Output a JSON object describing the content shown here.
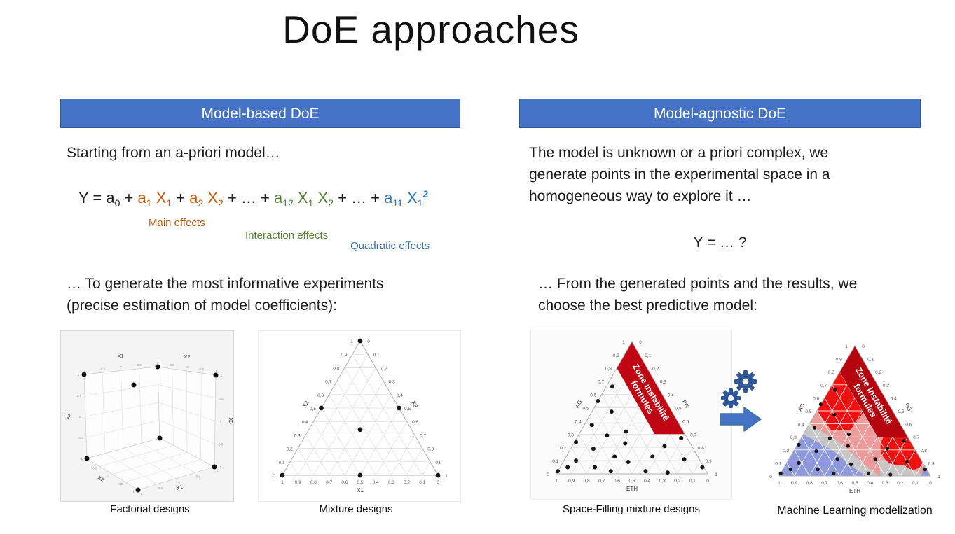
{
  "slide": {
    "title": "DoE approaches"
  },
  "colors": {
    "accent_blue": "#4472C4",
    "bar_border": "#2F5597",
    "orange": "#C55A11",
    "green": "#548235",
    "formula_blue": "#2E74B5",
    "band_red": "#C00613",
    "gear_blue": "#2E5597",
    "arrow_border": "#41719C"
  },
  "left": {
    "header": "Model-based DoE",
    "intro": "Starting from an a-priori model…",
    "formula_segments": [
      {
        "t": "Y = a",
        "c": "#1b1b1b"
      },
      {
        "t": "0",
        "c": "#1b1b1b",
        "sub": true
      },
      {
        "t": " + ",
        "c": "#1b1b1b"
      },
      {
        "t": "a",
        "c": "#C55A11"
      },
      {
        "t": "1",
        "c": "#C55A11",
        "sub": true
      },
      {
        "t": " X",
        "c": "#C55A11"
      },
      {
        "t": "1",
        "c": "#C55A11",
        "sub": true
      },
      {
        "t": " + ",
        "c": "#1b1b1b"
      },
      {
        "t": "a",
        "c": "#C55A11"
      },
      {
        "t": "2",
        "c": "#C55A11",
        "sub": true
      },
      {
        "t": " X",
        "c": "#C55A11"
      },
      {
        "t": "2",
        "c": "#C55A11",
        "sub": true
      },
      {
        "t": " + … + ",
        "c": "#1b1b1b"
      },
      {
        "t": "a",
        "c": "#548235"
      },
      {
        "t": "12",
        "c": "#548235",
        "sub": true
      },
      {
        "t": " X",
        "c": "#548235"
      },
      {
        "t": "1",
        "c": "#548235",
        "sub": true
      },
      {
        "t": " X",
        "c": "#548235"
      },
      {
        "t": "2",
        "c": "#548235",
        "sub": true
      },
      {
        "t": " + … + ",
        "c": "#1b1b1b"
      },
      {
        "t": "a",
        "c": "#2E74B5"
      },
      {
        "t": "11",
        "c": "#2E74B5",
        "sub": true
      },
      {
        "t": " X",
        "c": "#2E74B5"
      },
      {
        "t": "1",
        "c": "#2E74B5",
        "sub": true
      },
      {
        "t": "2",
        "c": "#2E74B5",
        "sup": true
      }
    ],
    "effect_labels": [
      {
        "text": "Main effects",
        "color": "#C55A11"
      },
      {
        "text": "Interaction effects",
        "color": "#548235"
      },
      {
        "text": "Quadratic effects",
        "color": "#2E74B5"
      }
    ],
    "body_lines": [
      "… To generate the most informative experiments",
      "(precise estimation of model coefficients):"
    ]
  },
  "right": {
    "header": "Model-agnostic DoE",
    "intro_lines": [
      "The model is unknown or a priori complex, we",
      "generate points in the experimental space in a",
      "homogeneous way to explore it …"
    ],
    "formula": "Y = … ?",
    "body_lines": [
      "… From the generated points and the results, we",
      "choose the best predictive model:"
    ]
  },
  "chart_data": [
    {
      "id": "factorial",
      "type": "scatter",
      "title": "Factorial designs",
      "axes": {
        "x1": "X1",
        "x2": "X2",
        "x3": "X3"
      },
      "tick_labels": [
        "-1",
        "-0,5",
        "0",
        "0,5",
        "1"
      ],
      "axis_range": [
        -1,
        1
      ],
      "points": [
        [
          -1,
          -1,
          -1
        ],
        [
          1,
          -1,
          -1
        ],
        [
          -1,
          1,
          -1
        ],
        [
          1,
          1,
          -1
        ],
        [
          -1,
          -1,
          1
        ],
        [
          1,
          -1,
          1
        ],
        [
          -1,
          1,
          1
        ],
        [
          1,
          1,
          1
        ]
      ]
    },
    {
      "id": "mixture",
      "type": "scatter",
      "title": "Mixture designs",
      "axes": {
        "bottom": "X1",
        "left": "X2",
        "right": "X3"
      },
      "tick_labels": [
        "0",
        "0,1",
        "0,2",
        "0,3",
        "0,4",
        "0,5",
        "0,6",
        "0,7",
        "0,8",
        "0,9",
        "1"
      ],
      "points": [
        [
          1,
          0,
          0
        ],
        [
          0,
          1,
          0
        ],
        [
          0,
          0,
          1
        ],
        [
          0.5,
          0.5,
          0
        ],
        [
          0.5,
          0,
          0.5
        ],
        [
          0,
          0.5,
          0.5
        ],
        [
          0.33,
          0.34,
          0.33
        ]
      ]
    },
    {
      "id": "space_filling",
      "type": "scatter",
      "title": "Space-Filling mixture designs",
      "axes": {
        "bottom": "ETH",
        "left": "AG",
        "right": "PG"
      },
      "tick_labels": [
        "0",
        "0,1",
        "0,2",
        "0,3",
        "0,4",
        "0,5",
        "0,6",
        "0,7",
        "0,8",
        "0,9",
        "1"
      ],
      "band": {
        "label_lines": [
          "Zone instabilité",
          "formules"
        ],
        "polygon": [
          [
            0.2,
            0.8,
            0
          ],
          [
            0,
            1,
            0
          ],
          [
            0,
            0.3,
            0.7
          ],
          [
            0.2,
            0.3,
            0.5
          ]
        ],
        "color": "#C00613"
      },
      "points": [
        [
          0.3,
          0.66,
          0.04
        ],
        [
          0.45,
          0.55,
          0.0
        ],
        [
          0.4,
          0.47,
          0.13
        ],
        [
          0.58,
          0.37,
          0.05
        ],
        [
          0.75,
          0.24,
          0.01
        ],
        [
          0.52,
          0.29,
          0.19
        ],
        [
          0.43,
          0.23,
          0.34
        ],
        [
          0.66,
          0.19,
          0.15
        ],
        [
          0.82,
          0.1,
          0.08
        ],
        [
          0.98,
          0.02,
          0.0
        ],
        [
          0.72,
          0.05,
          0.23
        ],
        [
          0.63,
          0.02,
          0.35
        ],
        [
          0.48,
          0.09,
          0.43
        ],
        [
          0.4,
          0.02,
          0.58
        ],
        [
          0.26,
          0.01,
          0.73
        ],
        [
          0.18,
          0.21,
          0.61
        ],
        [
          0.04,
          0.27,
          0.69
        ],
        [
          0.1,
          0.11,
          0.79
        ],
        [
          0.01,
          0.05,
          0.94
        ],
        [
          0.38,
          0.32,
          0.3
        ],
        [
          0.3,
          0.13,
          0.57
        ],
        [
          0.9,
          0.05,
          0.05
        ],
        [
          0.55,
          0.13,
          0.32
        ]
      ]
    },
    {
      "id": "ml",
      "type": "scatter",
      "title": "Machine Learning modelization",
      "axes": {
        "bottom": "ETH",
        "left": "AG",
        "right": "PG"
      },
      "tick_labels": [
        "0",
        "0,1",
        "0,2",
        "0,3",
        "0,4",
        "0,5",
        "0,6",
        "0,7",
        "0,8",
        "0,9",
        "1"
      ],
      "grid_color": "#ffffff",
      "band": {
        "label_lines": [
          "Zone instabilité",
          "formules"
        ],
        "polygon": [
          [
            0.2,
            0.8,
            0
          ],
          [
            0,
            1,
            0
          ],
          [
            0,
            0.3,
            0.7
          ],
          [
            0.2,
            0.3,
            0.5
          ]
        ],
        "color": "#B50610"
      },
      "regions": [
        {
          "poly": [
            [
              1,
              0,
              0
            ],
            [
              0,
              1,
              0
            ],
            [
              0,
              0,
              1
            ]
          ],
          "color": "#EC9B9B"
        },
        {
          "poly": [
            [
              1,
              0,
              0
            ],
            [
              0.6,
              0.4,
              0
            ],
            [
              0.47,
              0.26,
              0.27
            ],
            [
              0.4,
              0.1,
              0.5
            ],
            [
              0.34,
              0,
              0.66
            ]
          ],
          "color": "#C6C6C6"
        },
        {
          "poly": [
            [
              1,
              0,
              0
            ],
            [
              0.68,
              0.32,
              0
            ],
            [
              0.55,
              0.2,
              0.25
            ],
            [
              0.48,
              0.07,
              0.45
            ],
            [
              0.43,
              0,
              0.57
            ]
          ],
          "color": "#8E99DC"
        },
        {
          "poly": [
            [
              0.33,
              0,
              0.67
            ],
            [
              0.28,
              0.12,
              0.6
            ],
            [
              0.18,
              0.15,
              0.67
            ],
            [
              0.06,
              0.02,
              0.92
            ],
            [
              0.02,
              0,
              0.98
            ]
          ],
          "color": "#C6C6C6"
        },
        {
          "poly": [
            [
              0.06,
              0,
              0.94
            ],
            [
              0,
              0,
              1
            ],
            [
              0,
              0.08,
              0.92
            ]
          ],
          "color": "#8E99DC"
        },
        {
          "circle": [
            0.1,
            0.22,
            0.68
          ],
          "r": 26,
          "color": "#EE1111"
        },
        {
          "circle": [
            0.05,
            0.13,
            0.82
          ],
          "r": 15,
          "color": "#EE1111"
        },
        {
          "poly": [
            [
              0.5,
              0.5,
              0
            ],
            [
              0.3,
              0.7,
              0
            ],
            [
              0,
              1,
              0
            ],
            [
              0.05,
              0.6,
              0.35
            ],
            [
              0.22,
              0.47,
              0.31
            ],
            [
              0.35,
              0.35,
              0.3
            ],
            [
              0.48,
              0.35,
              0.17
            ]
          ],
          "color": "#EE1111"
        }
      ],
      "points": [
        [
          0.3,
          0.66,
          0.04
        ],
        [
          0.45,
          0.55,
          0.0
        ],
        [
          0.4,
          0.47,
          0.13
        ],
        [
          0.58,
          0.37,
          0.05
        ],
        [
          0.75,
          0.24,
          0.01
        ],
        [
          0.52,
          0.29,
          0.19
        ],
        [
          0.43,
          0.23,
          0.34
        ],
        [
          0.66,
          0.19,
          0.15
        ],
        [
          0.82,
          0.1,
          0.08
        ],
        [
          0.98,
          0.02,
          0.0
        ],
        [
          0.72,
          0.05,
          0.23
        ],
        [
          0.63,
          0.02,
          0.35
        ],
        [
          0.48,
          0.09,
          0.43
        ],
        [
          0.4,
          0.02,
          0.58
        ],
        [
          0.26,
          0.01,
          0.73
        ],
        [
          0.18,
          0.21,
          0.61
        ],
        [
          0.04,
          0.27,
          0.69
        ],
        [
          0.1,
          0.11,
          0.79
        ],
        [
          0.01,
          0.05,
          0.94
        ],
        [
          0.38,
          0.32,
          0.3
        ],
        [
          0.3,
          0.13,
          0.57
        ],
        [
          0.9,
          0.05,
          0.05
        ],
        [
          0.55,
          0.13,
          0.32
        ]
      ]
    }
  ]
}
